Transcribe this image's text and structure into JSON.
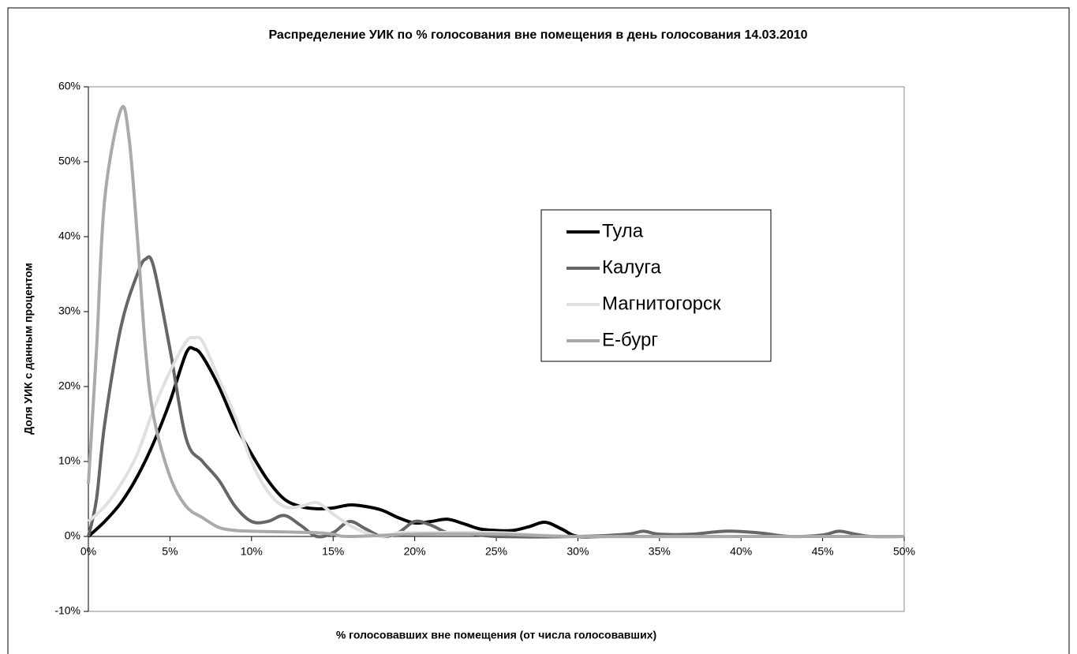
{
  "chart_data": {
    "type": "line",
    "title": "Распределение УИК по % голосования вне помещения в день голосования 14.03.2010",
    "xlabel": "% голосовавших вне помещения (от числа голосовавших)",
    "ylabel": "Доля УИК с данным процентом",
    "xlim": [
      0,
      50
    ],
    "ylim": [
      -10,
      60
    ],
    "xticks": [
      {
        "value": 0,
        "label": "0%"
      },
      {
        "value": 5,
        "label": "5%"
      },
      {
        "value": 10,
        "label": "10%"
      },
      {
        "value": 15,
        "label": "15%"
      },
      {
        "value": 20,
        "label": "20%"
      },
      {
        "value": 25,
        "label": "25%"
      },
      {
        "value": 30,
        "label": "30%"
      },
      {
        "value": 35,
        "label": "35%"
      },
      {
        "value": 40,
        "label": "40%"
      },
      {
        "value": 45,
        "label": "45%"
      },
      {
        "value": 50,
        "label": "50%"
      }
    ],
    "yticks": [
      {
        "value": -10,
        "label": "-10%"
      },
      {
        "value": 0,
        "label": "0%"
      },
      {
        "value": 10,
        "label": "10%"
      },
      {
        "value": 20,
        "label": "20%"
      },
      {
        "value": 30,
        "label": "30%"
      },
      {
        "value": 40,
        "label": "40%"
      },
      {
        "value": 50,
        "label": "50%"
      },
      {
        "value": 60,
        "label": "60%"
      }
    ],
    "grid": false,
    "legend": "center-right",
    "smooth": true,
    "series": [
      {
        "name": "Тула",
        "color": "#000000",
        "x": [
          0,
          1,
          2,
          3,
          4,
          5,
          6,
          6.5,
          7,
          8,
          9,
          10,
          11,
          12,
          13,
          14,
          15,
          16,
          17,
          18,
          19,
          20,
          21,
          22,
          23,
          24,
          25,
          26,
          27,
          28,
          29,
          30,
          32,
          35,
          40,
          45,
          50
        ],
        "values": [
          0,
          2,
          4.5,
          8,
          12.5,
          18,
          24.5,
          25,
          24,
          20,
          15,
          11,
          7.5,
          5,
          4,
          3.7,
          3.8,
          4.2,
          4,
          3.5,
          2.5,
          1.8,
          2,
          2.3,
          1.7,
          1,
          0.8,
          0.8,
          1.3,
          1.9,
          1,
          0,
          0,
          0,
          0,
          0,
          0
        ]
      },
      {
        "name": "Калуга",
        "color": "#666666",
        "x": [
          0,
          0.5,
          1,
          2,
          3,
          3.5,
          4,
          5,
          6,
          7,
          8,
          9,
          10,
          11,
          12,
          13,
          14,
          15,
          16,
          17,
          18,
          19,
          20,
          21,
          22,
          23,
          25,
          30,
          33,
          34,
          35,
          37,
          39,
          41,
          43,
          45,
          46,
          47,
          48,
          50
        ],
        "values": [
          0,
          5,
          15,
          28,
          35,
          37,
          36,
          25,
          13,
          10,
          7.5,
          4,
          2,
          2,
          2.8,
          1.5,
          0,
          0.5,
          2,
          1,
          0,
          0.5,
          2,
          1.5,
          0.5,
          0.5,
          0,
          0,
          0.3,
          0.7,
          0.3,
          0.3,
          0.7,
          0.5,
          0,
          0.2,
          0.7,
          0.3,
          0,
          0
        ]
      },
      {
        "name": "Магнитогорск",
        "color": "#e0e0e0",
        "x": [
          0,
          1,
          2,
          3,
          4,
          5,
          6,
          6.5,
          7,
          8,
          9,
          10,
          11,
          12,
          13,
          14,
          15,
          16,
          17,
          18,
          19,
          20,
          25,
          30,
          40,
          50
        ],
        "values": [
          2,
          4,
          7,
          11,
          17,
          22,
          26,
          26.5,
          26,
          21,
          16,
          10,
          6,
          4,
          4,
          4.5,
          3,
          1.5,
          0.5,
          0,
          0.5,
          0.5,
          0.5,
          0,
          0,
          0
        ]
      },
      {
        "name": "Е-бург",
        "color": "#aaaaaa",
        "x": [
          0,
          0.5,
          1,
          2,
          2.5,
          3,
          3.5,
          4,
          5,
          6,
          7,
          8,
          9,
          10,
          12,
          14,
          15,
          16,
          20,
          25,
          30,
          40,
          50
        ],
        "values": [
          7,
          25,
          45,
          57,
          53,
          40,
          25,
          16,
          8,
          4,
          2.5,
          1.2,
          0.8,
          0.7,
          0.6,
          0.5,
          0.3,
          0,
          0.3,
          0.3,
          0,
          0,
          0
        ]
      }
    ]
  }
}
